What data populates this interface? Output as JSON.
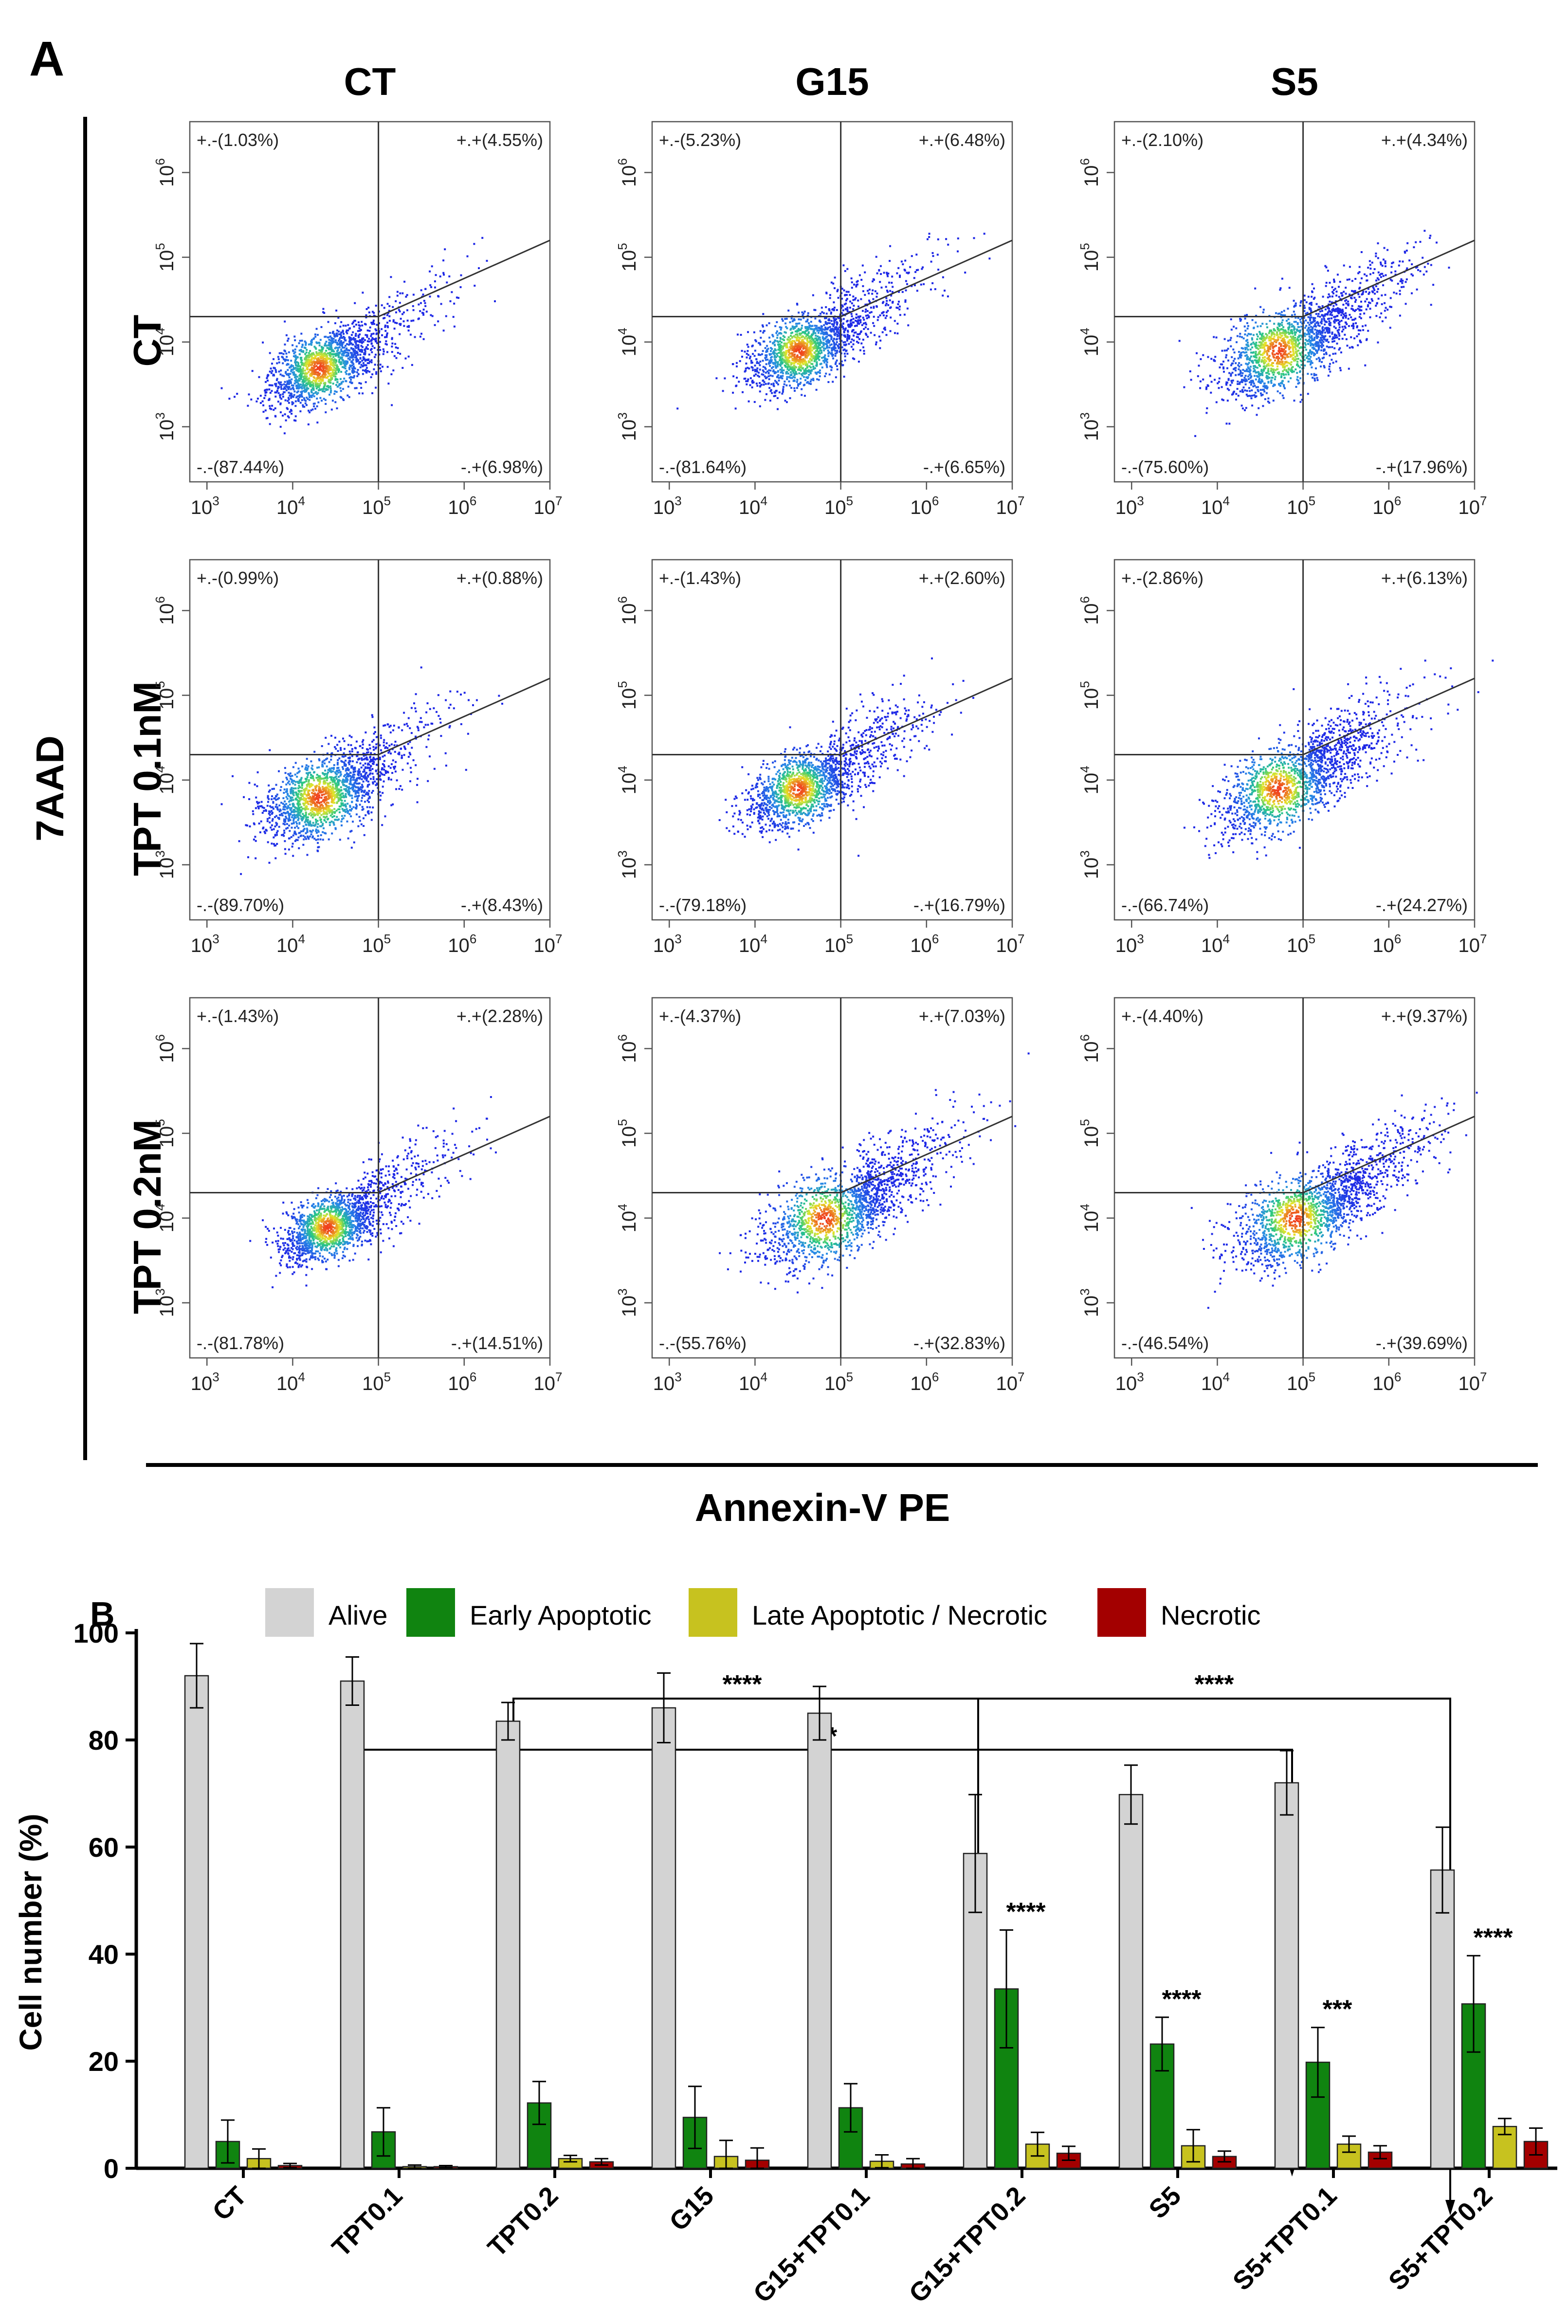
{
  "panelA": {
    "label": "A",
    "col_headers": [
      "CT",
      "G15",
      "S5"
    ],
    "row_headers": [
      "CT",
      "TPT 0.1nM",
      "TPT 0.2nM"
    ],
    "y_axis_label": "7AAD",
    "x_axis_label": "Annexin-V PE",
    "x_ticks": [
      {
        "base": "10",
        "exp": "3"
      },
      {
        "base": "10",
        "exp": "4"
      },
      {
        "base": "10",
        "exp": "5"
      },
      {
        "base": "10",
        "exp": "6"
      },
      {
        "base": "10",
        "exp": "7"
      }
    ],
    "y_ticks": [
      {
        "base": "10",
        "exp": "3"
      },
      {
        "base": "10",
        "exp": "4"
      },
      {
        "base": "10",
        "exp": "5"
      },
      {
        "base": "10",
        "exp": "6"
      }
    ],
    "plots": [
      {
        "quads": [
          "+.-(1.03%)",
          "+.+(4.55%)",
          "-.-(87.44%)",
          "-.+(6.98%)"
        ],
        "cx": 4.3,
        "cy": 3.7,
        "spread": 0.33,
        "tail": 0.18
      },
      {
        "quads": [
          "+.-(5.23%)",
          "+.+(6.48%)",
          "-.-(81.64%)",
          "-.+(6.65%)"
        ],
        "cx": 4.5,
        "cy": 3.9,
        "spread": 0.33,
        "tail": 0.22
      },
      {
        "quads": [
          "+.-(2.10%)",
          "+.+(4.34%)",
          "-.-(75.60%)",
          "-.+(17.96%)"
        ],
        "cx": 4.7,
        "cy": 3.9,
        "spread": 0.4,
        "tail": 0.28
      },
      {
        "quads": [
          "+.-(0.99%)",
          "+.+(0.88%)",
          "-.-(89.70%)",
          "-.+(8.43%)"
        ],
        "cx": 4.3,
        "cy": 3.8,
        "spread": 0.38,
        "tail": 0.14
      },
      {
        "quads": [
          "+.-(1.43%)",
          "+.+(2.60%)",
          "-.-(79.18%)",
          "-.+(16.79%)"
        ],
        "cx": 4.5,
        "cy": 3.9,
        "spread": 0.33,
        "tail": 0.22
      },
      {
        "quads": [
          "+.-(2.86%)",
          "+.+(6.13%)",
          "-.-(66.74%)",
          "-.+(24.27%)"
        ],
        "cx": 4.7,
        "cy": 3.9,
        "spread": 0.4,
        "tail": 0.3
      },
      {
        "quads": [
          "+.-(1.43%)",
          "+.+(2.28%)",
          "-.-(81.78%)",
          "-.+(14.51%)"
        ],
        "cx": 4.4,
        "cy": 3.9,
        "spread": 0.3,
        "tail": 0.2
      },
      {
        "quads": [
          "+.-(4.37%)",
          "+.+(7.03%)",
          "-.-(55.76%)",
          "-.+(32.83%)"
        ],
        "cx": 4.8,
        "cy": 4.0,
        "spread": 0.42,
        "tail": 0.32
      },
      {
        "quads": [
          "+.-(4.40%)",
          "+.+(9.37%)",
          "-.-(46.54%)",
          "-.+(39.69%)"
        ],
        "cx": 4.9,
        "cy": 4.0,
        "spread": 0.42,
        "tail": 0.34
      }
    ]
  },
  "panelB": {
    "label": "B",
    "legend": [
      {
        "name": "Alive",
        "color": "#d3d3d3"
      },
      {
        "name": "Early Apoptotic",
        "color": "#108410"
      },
      {
        "name": "Late Apoptotic / Necrotic",
        "color": "#c7c21f"
      },
      {
        "name": "Necrotic",
        "color": "#a30000"
      }
    ],
    "bracket_labels": [
      "****",
      "****",
      "**"
    ]
  },
  "chart_data": {
    "type": "bar",
    "title": "",
    "xlabel": "",
    "ylabel": "Cell number (%)",
    "ylim": [
      0,
      100
    ],
    "yticks": [
      0,
      20,
      40,
      60,
      80,
      100
    ],
    "categories": [
      "CT",
      "TPT0.1",
      "TPT0.2",
      "G15",
      "G15+TPT0.1",
      "G15+TPT0.2",
      "S5",
      "S5+TPT0.1",
      "S5+TPT0.2"
    ],
    "series": [
      {
        "name": "Alive",
        "values": [
          92,
          91,
          83.5,
          86,
          85,
          58.8,
          69.8,
          72,
          55.7
        ],
        "errors": [
          6,
          4.5,
          3.5,
          6.5,
          5,
          11,
          5.5,
          6,
          8
        ]
      },
      {
        "name": "Early Apoptotic",
        "values": [
          5,
          6.8,
          12.2,
          9.5,
          11.3,
          33.5,
          23.2,
          19.8,
          30.7
        ],
        "errors": [
          4,
          4.5,
          4,
          5.8,
          4.5,
          11,
          5,
          6.5,
          9
        ]
      },
      {
        "name": "Late Apoptotic / Necrotic",
        "values": [
          1.8,
          0.3,
          1.8,
          2.2,
          1.3,
          4.5,
          4.2,
          4.5,
          7.8
        ],
        "errors": [
          1.8,
          0.3,
          0.6,
          3,
          1.2,
          2.2,
          3,
          1.5,
          1.5
        ]
      },
      {
        "name": "Necrotic",
        "values": [
          0.5,
          0.3,
          1.2,
          1.5,
          0.8,
          2.8,
          2.2,
          3,
          5
        ],
        "errors": [
          0.4,
          0.2,
          0.6,
          2.3,
          1,
          1.3,
          1,
          1.2,
          2.5
        ]
      }
    ],
    "significance": [
      {
        "category": "G15+TPT0.2",
        "series": "Early Apoptotic",
        "label": "****"
      },
      {
        "category": "S5",
        "series": "Early Apoptotic",
        "label": "****"
      },
      {
        "category": "S5+TPT0.1",
        "series": "Early Apoptotic",
        "label": "***"
      },
      {
        "category": "S5+TPT0.2",
        "series": "Early Apoptotic",
        "label": "****"
      }
    ]
  }
}
